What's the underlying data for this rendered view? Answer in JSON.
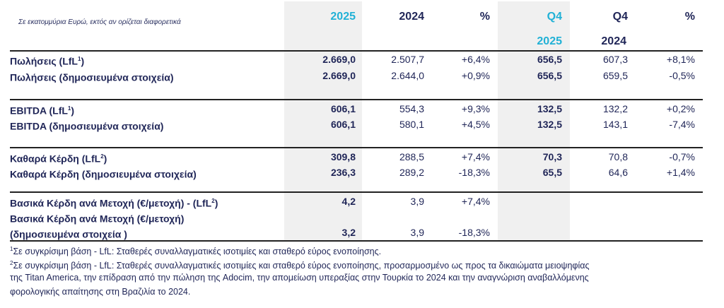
{
  "caption": "Σε εκατομμύρια Ευρώ, εκτός αν ορίζεται διαφορετικά",
  "headers": {
    "fy2025": "2025",
    "fy2024": "2024",
    "fy_pct": "%",
    "q4_2025_l1": "Q4",
    "q4_2025_l2": "2025",
    "q4_2024_l1": "Q4",
    "q4_2024_l2": "2024",
    "q_pct": "%"
  },
  "rows": [
    {
      "label": "Πωλήσεις (LfL",
      "sup": "1",
      "label_end": ")",
      "v": [
        "2.669,0",
        "2.507,7",
        "+6,4%",
        "656,5",
        "607,3",
        "+8,1%"
      ]
    },
    {
      "label": "Πωλήσεις (δημοσιευμένα στοιχεία)",
      "sup": "",
      "label_end": "",
      "v": [
        "2.669,0",
        "2.644,0",
        "+0,9%",
        "656,5",
        "659,5",
        "-0,5%"
      ]
    },
    {
      "label": "EBITDA (LfL",
      "sup": "1",
      "label_end": ")",
      "v": [
        "606,1",
        "554,3",
        "+9,3%",
        "132,5",
        "132,2",
        "+0,2%"
      ]
    },
    {
      "label": "EBITDA (δημοσιευμένα στοιχεία)",
      "sup": "",
      "label_end": "",
      "v": [
        "606,1",
        "580,1",
        "+4,5%",
        "132,5",
        "143,1",
        "-7,4%"
      ]
    },
    {
      "label": "Καθαρά Κέρδη (LfL",
      "sup": "2",
      "label_end": ")",
      "v": [
        "309,8",
        "288,5",
        "+7,4%",
        "70,3",
        "70,8",
        "-0,7%"
      ]
    },
    {
      "label": "Καθαρά Κέρδη (δημοσιευμένα στοιχεία)",
      "sup": "",
      "label_end": "",
      "v": [
        "236,3",
        "289,2",
        "-18,3%",
        "65,5",
        "64,6",
        "+1,4%"
      ]
    },
    {
      "label": "Βασικά Κέρδη ανά Μετοχή (€/μετοχή) - (LfL",
      "sup": "2",
      "label_end": ")",
      "v": [
        "4,2",
        "3,9",
        "+7,4%",
        "",
        "",
        ""
      ]
    },
    {
      "label": "Βασικά Κέρδη ανά Μετοχή (€/μετοχή)",
      "sup": "",
      "label_end": "",
      "v": [
        "",
        "",
        "",
        "",
        "",
        ""
      ]
    },
    {
      "label": "(δημοσιευμένα στοιχεία )",
      "sup": "",
      "label_end": "",
      "v": [
        "3,2",
        "3,9",
        "-18,3%",
        "",
        "",
        ""
      ]
    }
  ],
  "footnotes": [
    {
      "sup": "1",
      "text": "Σε συγκρίσιμη βάση - LfL: Σταθερές συναλλαγματικές ισοτιμίες και σταθερό εύρος ενοποίησης."
    },
    {
      "sup": "2",
      "text": "Σε συγκρίσιμη βάση - LfL: Σταθερές συναλλαγματικές ισοτιμίες και σταθερό εύρος ενοποίησης, προσαρμοσμένο ως προς τα δικαιώματα μειοψηφίας"
    },
    {
      "sup": "",
      "text": "της Titan America, την επίδραση από την πώληση της Adocim, την απομείωση υπεραξίας στην Τουρκία το 2024 και την αναγνώριση αναβαλλόμενης"
    },
    {
      "sup": "",
      "text": "φορολογικής απαίτησης στη Βραζιλία το 2024."
    }
  ],
  "colors": {
    "text": "#1f2557",
    "accent": "#21b1d6",
    "shade": "#f0f0f0"
  }
}
